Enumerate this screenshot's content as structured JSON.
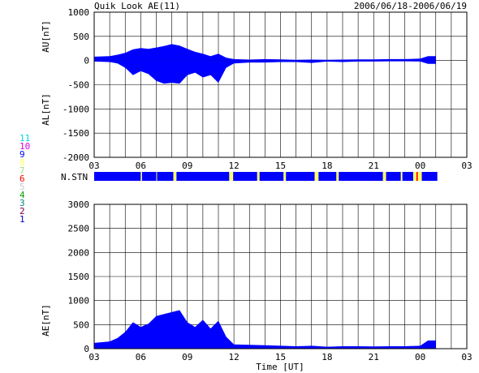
{
  "title": "Quik Look AE(11)",
  "date_range": "2006/06/18-2006/06/19",
  "chart_data": [
    {
      "type": "area",
      "panel": "AU/AL",
      "ylabel_top": "AU[nT]",
      "ylabel_bottom": "AL[nT]",
      "ylim": [
        -2000,
        1000
      ],
      "yticks": [
        "1000",
        "500",
        "0",
        "-500",
        "-1000",
        "-1500",
        "-2000"
      ],
      "yticks_values": [
        1000,
        500,
        0,
        -500,
        -1000,
        -1500,
        -2000
      ],
      "xticks": [
        "03",
        "06",
        "09",
        "12",
        "15",
        "18",
        "21",
        "00",
        "03"
      ],
      "xlim_hours": [
        3,
        27
      ],
      "grid": true,
      "fill_color": "#0000ff",
      "au_series": {
        "name": "AU",
        "x_hours": [
          3.0,
          4.0,
          4.5,
          5.0,
          5.5,
          6.0,
          6.5,
          7.0,
          7.5,
          8.0,
          8.5,
          9.0,
          9.5,
          10.0,
          10.5,
          11.0,
          11.5,
          12.0,
          13.0,
          14.0,
          15.0,
          16.0,
          17.0,
          18.0,
          19.0,
          20.0,
          21.0,
          22.0,
          23.0,
          24.0,
          24.5,
          25.0
        ],
        "values": [
          80,
          90,
          120,
          160,
          230,
          260,
          240,
          270,
          300,
          340,
          310,
          240,
          180,
          140,
          90,
          140,
          60,
          30,
          20,
          30,
          25,
          15,
          20,
          15,
          20,
          25,
          25,
          30,
          30,
          40,
          90,
          90
        ]
      },
      "al_series": {
        "name": "AL",
        "x_hours": [
          3.0,
          4.0,
          4.5,
          5.0,
          5.5,
          6.0,
          6.5,
          7.0,
          7.5,
          8.0,
          8.5,
          9.0,
          9.5,
          10.0,
          10.5,
          11.0,
          11.5,
          12.0,
          13.0,
          14.0,
          15.0,
          16.0,
          17.0,
          18.0,
          19.0,
          20.0,
          21.0,
          22.0,
          23.0,
          24.0,
          24.5,
          25.0
        ],
        "values": [
          -20,
          -30,
          -60,
          -150,
          -300,
          -220,
          -280,
          -420,
          -480,
          -460,
          -480,
          -300,
          -250,
          -350,
          -300,
          -460,
          -150,
          -60,
          -40,
          -40,
          -30,
          -30,
          -50,
          -20,
          -30,
          -20,
          -20,
          -15,
          -15,
          -20,
          -70,
          -70
        ]
      }
    },
    {
      "type": "heatmap",
      "panel": "station-count",
      "label": "N.STN",
      "legend_values": [
        "11",
        "10",
        "9",
        "8",
        "7",
        "6",
        "5",
        "4",
        "3",
        "2",
        "1"
      ],
      "legend_colors": [
        "#00d8d8",
        "#e000e0",
        "#0000ff",
        "#ffff66",
        "#a0e080",
        "#ff0000",
        "#c8c8c8",
        "#00a000",
        "#008080",
        "#800040",
        "#0000c0"
      ],
      "base_value": 9,
      "segments": [
        {
          "start_hour": 3.0,
          "end_hour": 6.0,
          "value": 9
        },
        {
          "start_hour": 6.0,
          "end_hour": 6.08,
          "value": 8
        },
        {
          "start_hour": 6.08,
          "end_hour": 7.0,
          "value": 9
        },
        {
          "start_hour": 7.0,
          "end_hour": 7.05,
          "value": 8
        },
        {
          "start_hour": 7.05,
          "end_hour": 8.1,
          "value": 9
        },
        {
          "start_hour": 8.1,
          "end_hour": 8.3,
          "value": 8
        },
        {
          "start_hour": 8.3,
          "end_hour": 11.7,
          "value": 9
        },
        {
          "start_hour": 11.7,
          "end_hour": 11.95,
          "value": 8
        },
        {
          "start_hour": 11.95,
          "end_hour": 13.5,
          "value": 9
        },
        {
          "start_hour": 13.5,
          "end_hour": 13.65,
          "value": 8
        },
        {
          "start_hour": 13.65,
          "end_hour": 15.2,
          "value": 9
        },
        {
          "start_hour": 15.2,
          "end_hour": 15.35,
          "value": 8
        },
        {
          "start_hour": 15.35,
          "end_hour": 17.2,
          "value": 9
        },
        {
          "start_hour": 17.2,
          "end_hour": 17.45,
          "value": 8
        },
        {
          "start_hour": 17.45,
          "end_hour": 18.6,
          "value": 9
        },
        {
          "start_hour": 18.6,
          "end_hour": 18.75,
          "value": 8
        },
        {
          "start_hour": 18.75,
          "end_hour": 21.6,
          "value": 9
        },
        {
          "start_hour": 21.6,
          "end_hour": 21.8,
          "value": 8
        },
        {
          "start_hour": 21.8,
          "end_hour": 22.75,
          "value": 9
        },
        {
          "start_hour": 22.75,
          "end_hour": 22.85,
          "value": 8
        },
        {
          "start_hour": 22.85,
          "end_hour": 23.55,
          "value": 9
        },
        {
          "start_hour": 23.55,
          "end_hour": 23.75,
          "value": 8
        },
        {
          "start_hour": 23.75,
          "end_hour": 23.85,
          "value": 6
        },
        {
          "start_hour": 23.85,
          "end_hour": 24.1,
          "value": 8
        },
        {
          "start_hour": 24.1,
          "end_hour": 25.1,
          "value": 9
        }
      ]
    },
    {
      "type": "area",
      "panel": "AE",
      "ylabel": "AE[nT]",
      "xlabel": "Time [UT]",
      "ylim": [
        0,
        3000
      ],
      "yticks": [
        "3000",
        "2500",
        "2000",
        "1500",
        "1000",
        "500",
        "0"
      ],
      "yticks_values": [
        3000,
        2500,
        2000,
        1500,
        1000,
        500,
        0
      ],
      "xticks": [
        "03",
        "06",
        "09",
        "12",
        "15",
        "18",
        "21",
        "00",
        "03"
      ],
      "xlim_hours": [
        3,
        27
      ],
      "grid": true,
      "fill_color": "#0000ff",
      "series": {
        "name": "AE",
        "x_hours": [
          3.0,
          4.0,
          4.5,
          5.0,
          5.5,
          6.0,
          6.5,
          7.0,
          7.5,
          8.0,
          8.5,
          9.0,
          9.5,
          10.0,
          10.5,
          11.0,
          11.5,
          12.0,
          13.0,
          14.0,
          15.0,
          16.0,
          17.0,
          18.0,
          19.0,
          20.0,
          21.0,
          22.0,
          23.0,
          24.0,
          24.5,
          25.0
        ],
        "values": [
          120,
          150,
          220,
          350,
          550,
          450,
          520,
          680,
          720,
          760,
          800,
          550,
          450,
          600,
          420,
          580,
          250,
          90,
          80,
          70,
          60,
          50,
          60,
          40,
          50,
          50,
          45,
          50,
          50,
          60,
          170,
          170
        ]
      }
    }
  ]
}
